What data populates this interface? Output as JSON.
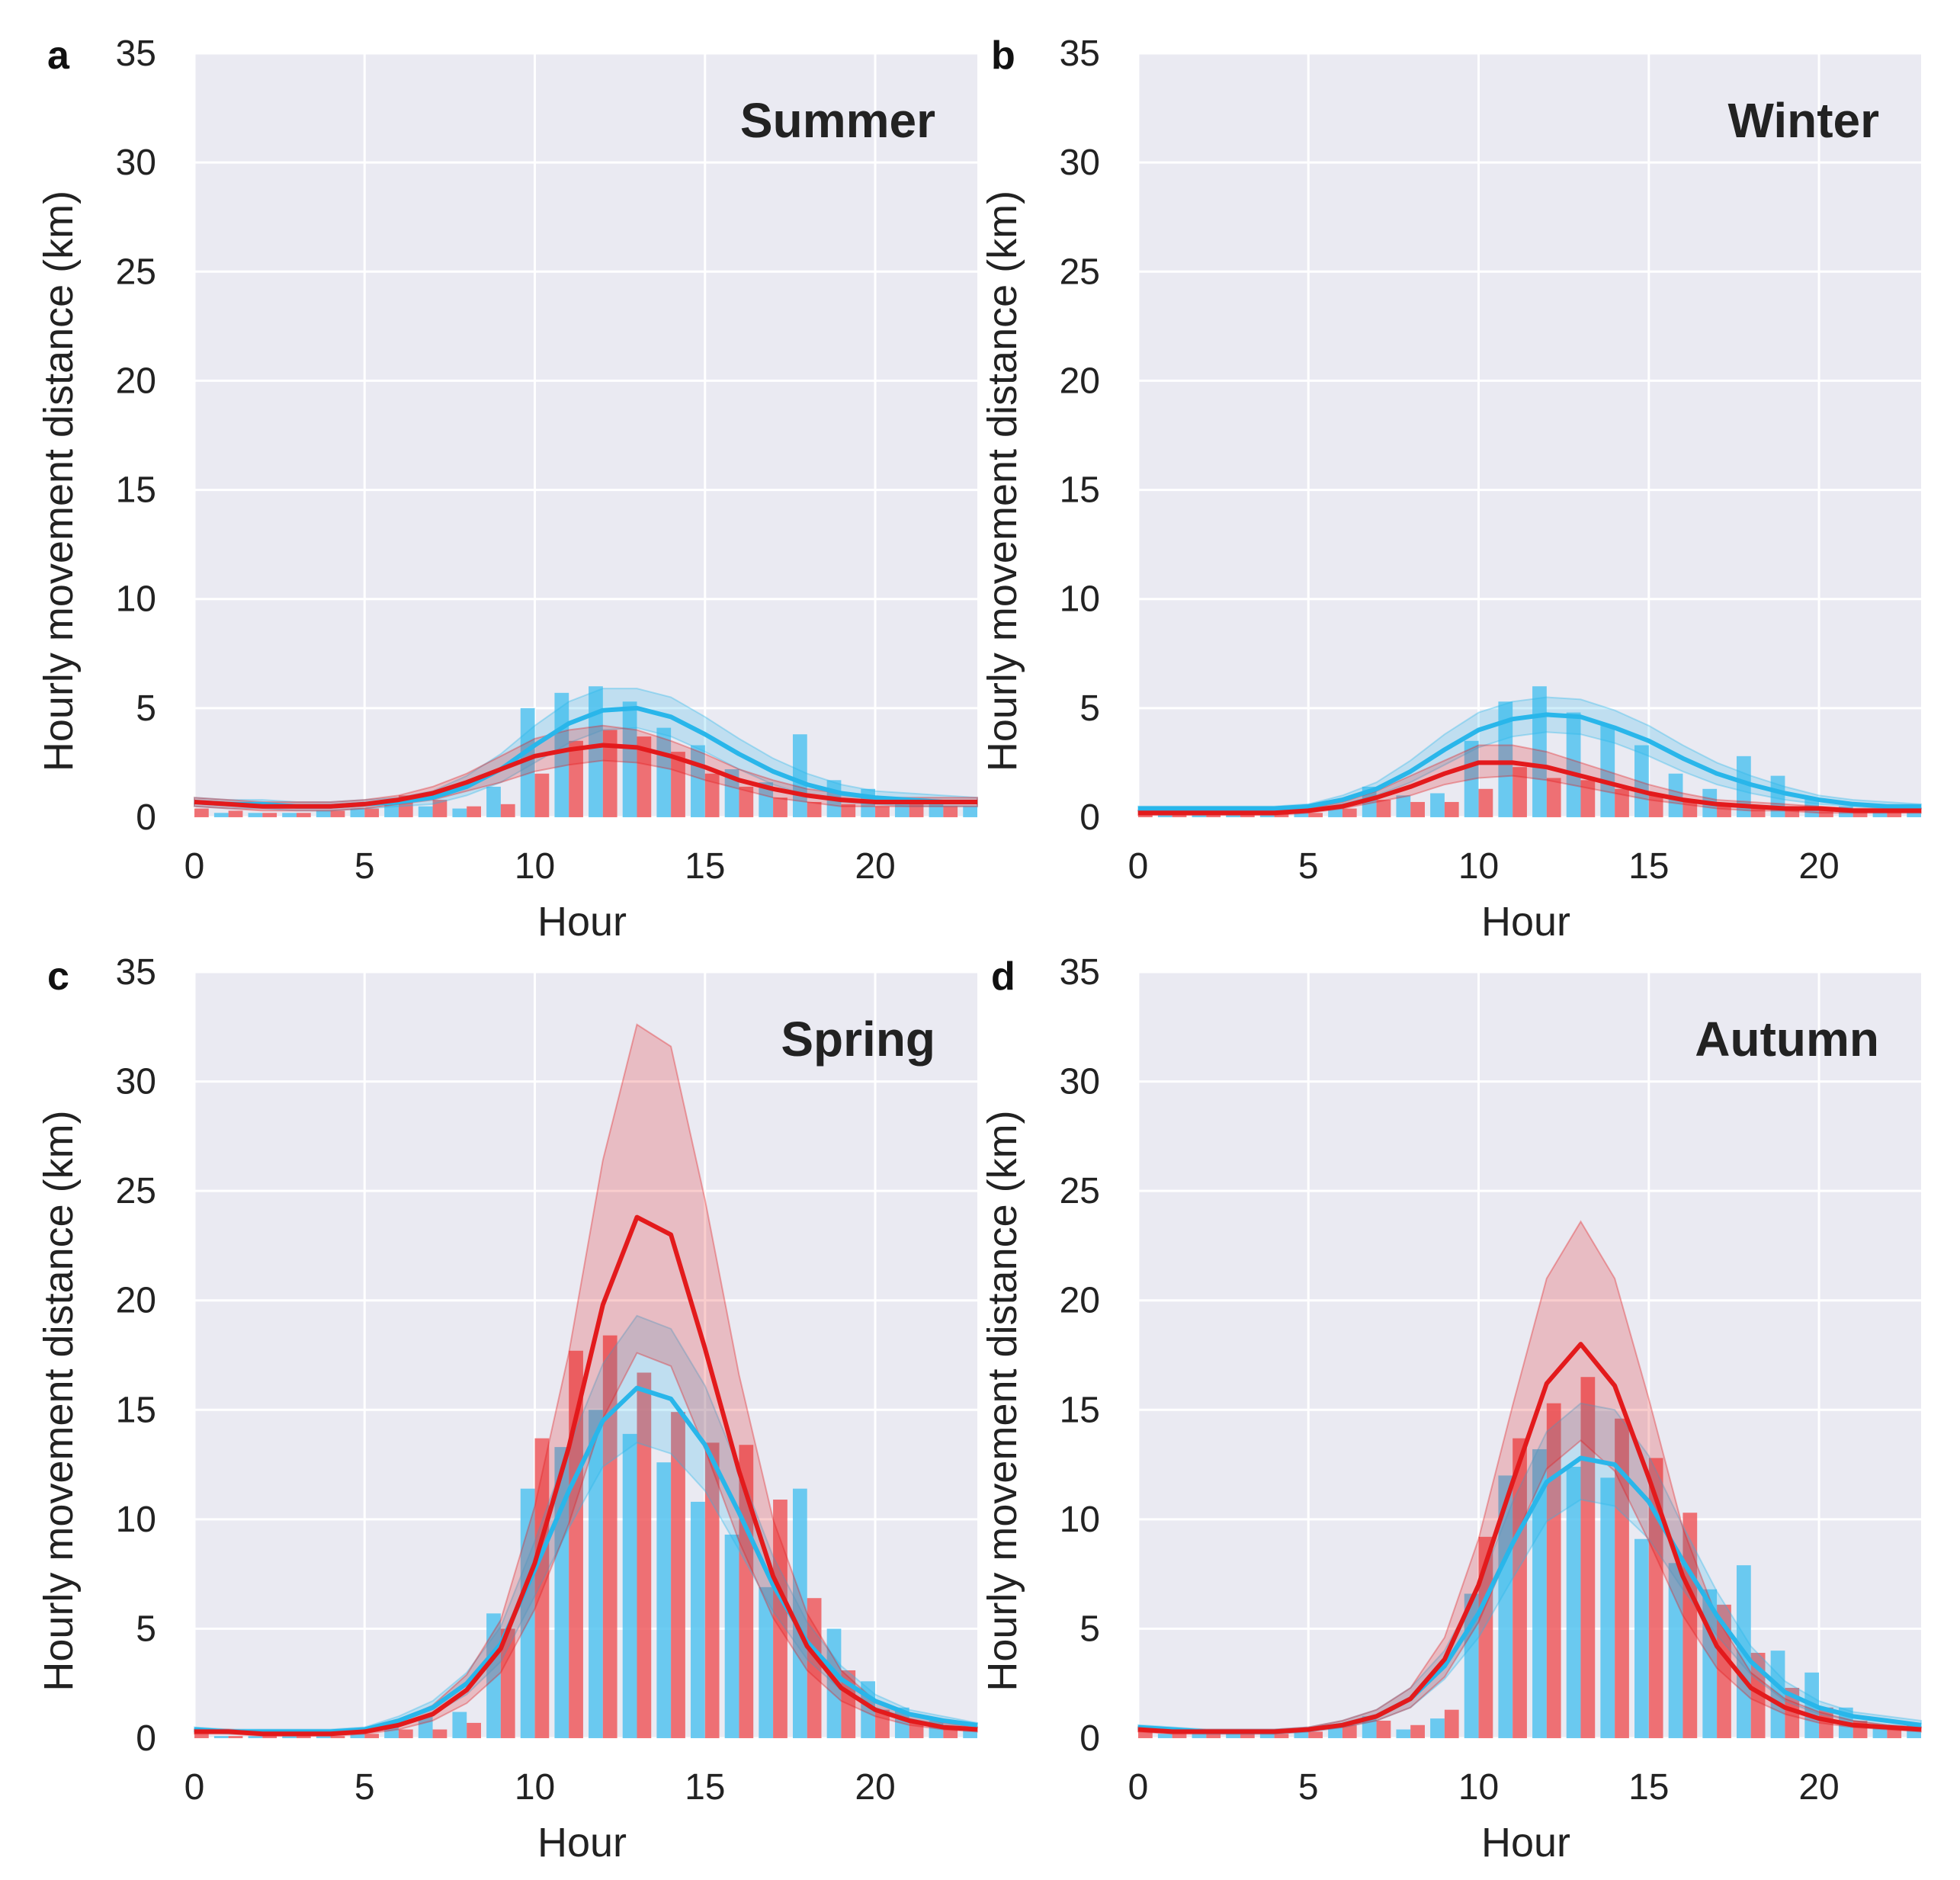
{
  "figure": {
    "xlabel": "Hour",
    "ylabel": "Hourly movement distance (km)",
    "colors": {
      "background": "#eaeaf2",
      "grid": "#ffffff",
      "blue": "#29b6ea",
      "red": "#e31a1c",
      "blue_bar": "#53c3f0",
      "red_bar": "#ef5b5e"
    }
  },
  "chart_data": [
    {
      "type": "bar",
      "panel": "a",
      "title": "Summer",
      "xlabel": "Hour",
      "ylabel": "Hourly movement distance (km)",
      "xlim": [
        0,
        23
      ],
      "ylim": [
        0,
        35
      ],
      "xticks": [
        0,
        5,
        10,
        15,
        20
      ],
      "yticks": [
        0,
        5,
        10,
        15,
        20,
        25,
        30,
        35
      ],
      "grid": true,
      "bars": {
        "x": [
          0,
          1,
          2,
          3,
          4,
          5,
          6,
          7,
          8,
          9,
          10,
          11,
          12,
          13,
          14,
          15,
          16,
          17,
          18,
          19,
          20,
          21,
          22,
          23
        ],
        "blue": [
          0.3,
          0.2,
          0.2,
          0.2,
          0.3,
          0.4,
          0.8,
          0.5,
          0.4,
          1.4,
          5.0,
          5.7,
          6.0,
          5.3,
          4.1,
          3.3,
          2.2,
          1.6,
          3.8,
          1.7,
          1.3,
          0.9,
          0.7,
          0.5
        ],
        "red": [
          0.4,
          0.3,
          0.2,
          0.2,
          0.3,
          0.4,
          1.0,
          0.8,
          0.5,
          0.6,
          2.0,
          3.5,
          4.0,
          3.7,
          3.0,
          2.0,
          1.4,
          0.9,
          0.7,
          0.6,
          0.5,
          0.6,
          0.5,
          0.4
        ]
      },
      "series": [
        {
          "color": "blue",
          "mean": [
            0.7,
            0.6,
            0.6,
            0.5,
            0.5,
            0.6,
            0.7,
            0.9,
            1.4,
            2.2,
            3.3,
            4.3,
            4.9,
            5.0,
            4.6,
            3.8,
            2.9,
            2.1,
            1.5,
            1.1,
            0.9,
            0.8,
            0.7,
            0.7
          ],
          "lower": [
            0.5,
            0.4,
            0.4,
            0.3,
            0.3,
            0.4,
            0.5,
            0.6,
            1.0,
            1.6,
            2.5,
            3.4,
            4.0,
            4.1,
            3.7,
            3.0,
            2.2,
            1.5,
            1.0,
            0.7,
            0.6,
            0.5,
            0.5,
            0.5
          ],
          "upper": [
            0.9,
            0.8,
            0.8,
            0.7,
            0.7,
            0.8,
            0.9,
            1.2,
            1.9,
            2.9,
            4.2,
            5.3,
            5.9,
            5.9,
            5.5,
            4.6,
            3.6,
            2.7,
            2.0,
            1.5,
            1.2,
            1.1,
            1.0,
            0.9
          ]
        },
        {
          "color": "red",
          "mean": [
            0.7,
            0.6,
            0.5,
            0.5,
            0.5,
            0.6,
            0.8,
            1.1,
            1.6,
            2.2,
            2.8,
            3.1,
            3.3,
            3.2,
            2.8,
            2.3,
            1.7,
            1.3,
            1.0,
            0.8,
            0.7,
            0.7,
            0.7,
            0.7
          ],
          "lower": [
            0.5,
            0.4,
            0.3,
            0.3,
            0.3,
            0.4,
            0.6,
            0.8,
            1.2,
            1.6,
            2.1,
            2.4,
            2.6,
            2.5,
            2.2,
            1.7,
            1.3,
            0.9,
            0.7,
            0.5,
            0.5,
            0.5,
            0.5,
            0.5
          ],
          "upper": [
            0.9,
            0.8,
            0.7,
            0.7,
            0.7,
            0.8,
            1.0,
            1.4,
            2.0,
            2.8,
            3.6,
            4.0,
            4.2,
            4.0,
            3.5,
            2.9,
            2.2,
            1.7,
            1.3,
            1.1,
            0.9,
            0.9,
            0.9,
            0.9
          ]
        }
      ]
    },
    {
      "type": "bar",
      "panel": "b",
      "title": "Winter",
      "xlabel": "Hour",
      "ylabel": "Hourly movement distance (km)",
      "xlim": [
        0,
        23
      ],
      "ylim": [
        0,
        35
      ],
      "xticks": [
        0,
        5,
        10,
        15,
        20
      ],
      "yticks": [
        0,
        5,
        10,
        15,
        20,
        25,
        30,
        35
      ],
      "grid": true,
      "bars": {
        "x": [
          0,
          1,
          2,
          3,
          4,
          5,
          6,
          7,
          8,
          9,
          10,
          11,
          12,
          13,
          14,
          15,
          16,
          17,
          18,
          19,
          20,
          21,
          22,
          23
        ],
        "blue": [
          0.2,
          0.2,
          0.2,
          0.2,
          0.2,
          0.3,
          0.5,
          1.4,
          1.0,
          1.1,
          3.5,
          5.3,
          6.0,
          4.8,
          4.2,
          3.3,
          2.0,
          1.3,
          2.8,
          1.9,
          0.9,
          0.5,
          0.4,
          0.3
        ],
        "red": [
          0.2,
          0.2,
          0.1,
          0.1,
          0.2,
          0.2,
          0.4,
          0.8,
          0.7,
          0.7,
          1.3,
          2.3,
          1.8,
          1.7,
          1.3,
          1.0,
          0.7,
          0.5,
          0.5,
          0.4,
          0.4,
          0.3,
          0.3,
          0.2
        ]
      },
      "series": [
        {
          "color": "blue",
          "mean": [
            0.4,
            0.4,
            0.4,
            0.4,
            0.4,
            0.5,
            0.8,
            1.3,
            2.1,
            3.1,
            4.0,
            4.5,
            4.7,
            4.6,
            4.1,
            3.5,
            2.7,
            2.0,
            1.5,
            1.1,
            0.8,
            0.6,
            0.5,
            0.5
          ],
          "lower": [
            0.3,
            0.3,
            0.3,
            0.3,
            0.3,
            0.4,
            0.6,
            1.0,
            1.6,
            2.4,
            3.2,
            3.7,
            3.9,
            3.8,
            3.4,
            2.8,
            2.1,
            1.5,
            1.1,
            0.8,
            0.6,
            0.5,
            0.4,
            0.4
          ],
          "upper": [
            0.5,
            0.5,
            0.5,
            0.5,
            0.5,
            0.6,
            1.0,
            1.6,
            2.6,
            3.8,
            4.8,
            5.3,
            5.5,
            5.4,
            4.9,
            4.2,
            3.3,
            2.5,
            1.9,
            1.4,
            1.0,
            0.8,
            0.7,
            0.6
          ]
        },
        {
          "color": "red",
          "mean": [
            0.2,
            0.2,
            0.2,
            0.2,
            0.2,
            0.3,
            0.5,
            0.9,
            1.4,
            2.0,
            2.5,
            2.5,
            2.3,
            1.9,
            1.5,
            1.1,
            0.8,
            0.6,
            0.5,
            0.4,
            0.4,
            0.3,
            0.3,
            0.3
          ],
          "lower": [
            0.1,
            0.1,
            0.1,
            0.1,
            0.1,
            0.2,
            0.4,
            0.7,
            1.0,
            1.5,
            1.8,
            1.9,
            1.7,
            1.4,
            1.1,
            0.8,
            0.6,
            0.4,
            0.3,
            0.3,
            0.2,
            0.2,
            0.2,
            0.2
          ],
          "upper": [
            0.3,
            0.3,
            0.3,
            0.3,
            0.3,
            0.4,
            0.7,
            1.2,
            1.9,
            2.6,
            3.3,
            3.3,
            3.0,
            2.5,
            2.0,
            1.5,
            1.1,
            0.8,
            0.7,
            0.6,
            0.5,
            0.4,
            0.4,
            0.4
          ]
        }
      ]
    },
    {
      "type": "bar",
      "panel": "c",
      "title": "Spring",
      "xlabel": "Hour",
      "ylabel": "Hourly movement distance (km)",
      "xlim": [
        0,
        23
      ],
      "ylim": [
        0,
        35
      ],
      "xticks": [
        0,
        5,
        10,
        15,
        20
      ],
      "yticks": [
        0,
        5,
        10,
        15,
        20,
        25,
        30,
        35
      ],
      "grid": true,
      "bars": {
        "x": [
          0,
          1,
          2,
          3,
          4,
          5,
          6,
          7,
          8,
          9,
          10,
          11,
          12,
          13,
          14,
          15,
          16,
          17,
          18,
          19,
          20,
          21,
          22,
          23
        ],
        "blue": [
          0.2,
          0.1,
          0.1,
          0.1,
          0.1,
          0.2,
          0.5,
          1.0,
          1.2,
          5.7,
          11.4,
          13.3,
          15.0,
          13.9,
          12.6,
          10.8,
          9.3,
          6.9,
          11.4,
          5.0,
          2.6,
          1.4,
          0.8,
          0.5
        ],
        "red": [
          0.2,
          0.1,
          0.1,
          0.1,
          0.1,
          0.2,
          0.4,
          0.4,
          0.7,
          5.0,
          13.7,
          17.7,
          18.4,
          16.7,
          14.9,
          13.5,
          13.4,
          10.9,
          6.4,
          3.1,
          1.3,
          0.7,
          0.5,
          0.3
        ]
      },
      "series": [
        {
          "color": "blue",
          "mean": [
            0.4,
            0.3,
            0.3,
            0.3,
            0.3,
            0.4,
            0.8,
            1.4,
            2.5,
            4.3,
            7.7,
            11.3,
            14.5,
            16.0,
            15.5,
            13.4,
            10.3,
            7.0,
            4.4,
            2.7,
            1.7,
            1.1,
            0.8,
            0.6
          ],
          "lower": [
            0.3,
            0.2,
            0.2,
            0.2,
            0.2,
            0.3,
            0.6,
            1.1,
            2.0,
            3.5,
            6.5,
            9.6,
            12.4,
            13.5,
            13.0,
            11.3,
            8.6,
            5.8,
            3.6,
            2.2,
            1.4,
            0.9,
            0.6,
            0.5
          ],
          "upper": [
            0.5,
            0.4,
            0.4,
            0.4,
            0.4,
            0.5,
            1.0,
            1.7,
            3.0,
            5.1,
            9.0,
            13.3,
            17.1,
            19.3,
            18.7,
            16.1,
            12.3,
            8.3,
            5.3,
            3.3,
            2.0,
            1.3,
            1.0,
            0.7
          ]
        },
        {
          "color": "red",
          "mean": [
            0.3,
            0.3,
            0.2,
            0.2,
            0.2,
            0.3,
            0.6,
            1.1,
            2.2,
            4.1,
            8.0,
            13.3,
            19.8,
            23.8,
            23.0,
            17.8,
            12.2,
            7.4,
            4.2,
            2.3,
            1.3,
            0.8,
            0.5,
            0.4
          ],
          "lower": [
            0.2,
            0.2,
            0.1,
            0.1,
            0.1,
            0.2,
            0.4,
            0.8,
            1.6,
            3.0,
            5.9,
            9.8,
            14.6,
            17.6,
            17.0,
            13.2,
            9.0,
            5.5,
            3.1,
            1.7,
            1.0,
            0.6,
            0.4,
            0.3
          ],
          "upper": [
            0.4,
            0.4,
            0.3,
            0.3,
            0.3,
            0.4,
            0.8,
            1.5,
            2.9,
            5.4,
            10.6,
            17.6,
            26.4,
            32.6,
            31.6,
            24.6,
            16.6,
            10.0,
            5.7,
            3.1,
            1.7,
            1.1,
            0.7,
            0.5
          ]
        }
      ]
    },
    {
      "type": "bar",
      "panel": "d",
      "title": "Autumn",
      "xlabel": "Hour",
      "ylabel": "Hourly movement distance (km)",
      "xlim": [
        0,
        23
      ],
      "ylim": [
        0,
        35
      ],
      "xticks": [
        0,
        5,
        10,
        15,
        20
      ],
      "yticks": [
        0,
        5,
        10,
        15,
        20,
        25,
        30,
        35
      ],
      "grid": true,
      "bars": {
        "x": [
          0,
          1,
          2,
          3,
          4,
          5,
          6,
          7,
          8,
          9,
          10,
          11,
          12,
          13,
          14,
          15,
          16,
          17,
          18,
          19,
          20,
          21,
          22,
          23
        ],
        "blue": [
          0.3,
          0.2,
          0.2,
          0.2,
          0.2,
          0.3,
          0.6,
          1.0,
          0.4,
          0.9,
          6.6,
          12.0,
          13.2,
          12.4,
          11.9,
          9.1,
          8.0,
          6.8,
          7.9,
          4.0,
          3.0,
          1.4,
          0.6,
          0.6
        ],
        "red": [
          0.3,
          0.2,
          0.2,
          0.2,
          0.2,
          0.3,
          0.6,
          0.8,
          0.6,
          1.3,
          9.2,
          13.7,
          15.3,
          16.5,
          14.6,
          12.8,
          10.3,
          6.1,
          3.9,
          2.3,
          1.4,
          0.8,
          0.5,
          0.4
        ]
      },
      "series": [
        {
          "color": "blue",
          "mean": [
            0.5,
            0.4,
            0.3,
            0.3,
            0.3,
            0.4,
            0.6,
            1.0,
            1.8,
            3.3,
            5.7,
            8.9,
            11.7,
            12.8,
            12.5,
            10.8,
            8.1,
            5.6,
            3.5,
            2.1,
            1.4,
            1.0,
            0.8,
            0.6
          ],
          "lower": [
            0.4,
            0.3,
            0.2,
            0.2,
            0.2,
            0.3,
            0.5,
            0.8,
            1.4,
            2.7,
            4.6,
            7.3,
            9.9,
            10.9,
            10.6,
            9.1,
            6.8,
            4.7,
            2.9,
            1.7,
            1.1,
            0.8,
            0.6,
            0.5
          ],
          "upper": [
            0.6,
            0.5,
            0.4,
            0.4,
            0.4,
            0.5,
            0.8,
            1.3,
            2.3,
            4.0,
            6.9,
            10.8,
            14.0,
            15.3,
            15.0,
            12.9,
            9.7,
            6.7,
            4.2,
            2.6,
            1.7,
            1.2,
            1.0,
            0.8
          ]
        },
        {
          "color": "red",
          "mean": [
            0.4,
            0.3,
            0.3,
            0.3,
            0.3,
            0.4,
            0.6,
            1.0,
            1.8,
            3.6,
            7.0,
            11.7,
            16.2,
            18.0,
            16.1,
            11.9,
            7.4,
            4.2,
            2.3,
            1.4,
            0.9,
            0.6,
            0.5,
            0.4
          ],
          "lower": [
            0.3,
            0.2,
            0.2,
            0.2,
            0.2,
            0.3,
            0.5,
            0.8,
            1.4,
            2.8,
            5.3,
            8.9,
            12.3,
            13.6,
            12.2,
            9.0,
            5.6,
            3.2,
            1.8,
            1.1,
            0.7,
            0.5,
            0.4,
            0.3
          ],
          "upper": [
            0.5,
            0.4,
            0.4,
            0.4,
            0.4,
            0.5,
            0.8,
            1.3,
            2.3,
            4.6,
            9.1,
            15.2,
            21.0,
            23.6,
            21.0,
            15.5,
            9.6,
            5.5,
            3.0,
            1.8,
            1.2,
            0.8,
            0.6,
            0.5
          ]
        }
      ]
    }
  ]
}
